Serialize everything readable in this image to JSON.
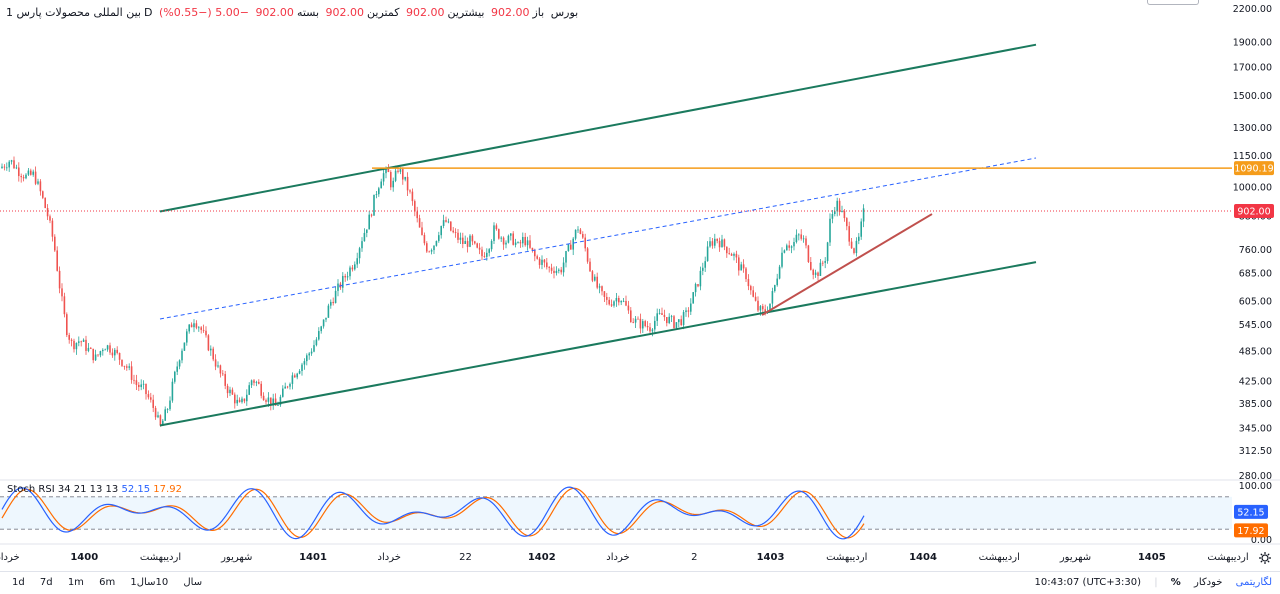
{
  "header": {
    "symbol_name": "بین المللی محصولات پارس",
    "interval": "1D",
    "exchange": "بورس",
    "open_label": "باز",
    "open_value": "902.00",
    "high_label": "بیشترین",
    "high_value": "902.00",
    "low_label": "کمترین",
    "low_value": "902.00",
    "close_label": "بسته",
    "close_value": "902.00",
    "change": "−5.00 (−0.55%)"
  },
  "colors": {
    "up": "#26a69a",
    "down": "#ef5350",
    "channel": "#1b7a5e",
    "resistance": "#f59c1a",
    "trend": "#c0504d",
    "midline": "#2962ff",
    "stoch_k": "#2962ff",
    "stoch_d": "#ff6d00",
    "last_price": "#f23645"
  },
  "chart_data": {
    "type": "candlestick",
    "price_axis": {
      "scale": "log",
      "ticks": [
        "2200.00",
        "1900.00",
        "1700.00",
        "1500.00",
        "1300.00",
        "1150.00",
        "1000.00",
        "880.00",
        "760.00",
        "685.00",
        "605.00",
        "545.00",
        "485.00",
        "425.00",
        "385.00",
        "345.00",
        "312.50",
        "280.00"
      ],
      "range": [
        280,
        2250
      ]
    },
    "time_axis": {
      "ticks": [
        "خرداد",
        "1400",
        "اردیبهشت",
        "شهریور",
        "1401",
        "خرداد",
        "22",
        "1402",
        "خرداد",
        "2",
        "1403",
        "اردیبهشت",
        "1404",
        "اردیبهشت",
        "شهریور",
        "1405",
        "اردیبهشت"
      ]
    },
    "price_path": [
      [
        0,
        1090
      ],
      [
        10,
        1130
      ],
      [
        18,
        1080
      ],
      [
        26,
        1050
      ],
      [
        34,
        1060
      ],
      [
        42,
        960
      ],
      [
        48,
        880
      ],
      [
        54,
        780
      ],
      [
        60,
        640
      ],
      [
        66,
        540
      ],
      [
        72,
        500
      ],
      [
        80,
        510
      ],
      [
        88,
        490
      ],
      [
        96,
        470
      ],
      [
        104,
        500
      ],
      [
        112,
        490
      ],
      [
        120,
        470
      ],
      [
        128,
        450
      ],
      [
        136,
        420
      ],
      [
        144,
        410
      ],
      [
        150,
        390
      ],
      [
        156,
        370
      ],
      [
        160,
        345
      ],
      [
        168,
        380
      ],
      [
        174,
        430
      ],
      [
        180,
        480
      ],
      [
        186,
        520
      ],
      [
        194,
        560
      ],
      [
        200,
        540
      ],
      [
        208,
        500
      ],
      [
        214,
        470
      ],
      [
        220,
        440
      ],
      [
        228,
        410
      ],
      [
        234,
        395
      ],
      [
        240,
        380
      ],
      [
        246,
        400
      ],
      [
        252,
        430
      ],
      [
        258,
        420
      ],
      [
        264,
        400
      ],
      [
        270,
        390
      ],
      [
        276,
        380
      ],
      [
        282,
        400
      ],
      [
        290,
        430
      ],
      [
        298,
        450
      ],
      [
        306,
        470
      ],
      [
        314,
        500
      ],
      [
        322,
        540
      ],
      [
        330,
        600
      ],
      [
        338,
        640
      ],
      [
        346,
        680
      ],
      [
        354,
        720
      ],
      [
        362,
        800
      ],
      [
        370,
        880
      ],
      [
        376,
        980
      ],
      [
        382,
        1060
      ],
      [
        388,
        1070
      ],
      [
        392,
        1000
      ],
      [
        398,
        1090
      ],
      [
        404,
        1040
      ],
      [
        410,
        970
      ],
      [
        416,
        880
      ],
      [
        422,
        800
      ],
      [
        428,
        760
      ],
      [
        434,
        780
      ],
      [
        440,
        840
      ],
      [
        446,
        860
      ],
      [
        452,
        820
      ],
      [
        458,
        800
      ],
      [
        464,
        780
      ],
      [
        470,
        790
      ],
      [
        476,
        760
      ],
      [
        482,
        740
      ],
      [
        488,
        770
      ],
      [
        494,
        830
      ],
      [
        500,
        810
      ],
      [
        506,
        790
      ],
      [
        512,
        800
      ],
      [
        518,
        770
      ],
      [
        524,
        800
      ],
      [
        530,
        760
      ],
      [
        536,
        730
      ],
      [
        542,
        720
      ],
      [
        548,
        700
      ],
      [
        554,
        700
      ],
      [
        560,
        690
      ],
      [
        566,
        740
      ],
      [
        572,
        790
      ],
      [
        578,
        840
      ],
      [
        584,
        780
      ],
      [
        590,
        700
      ],
      [
        596,
        650
      ],
      [
        602,
        620
      ],
      [
        608,
        600
      ],
      [
        614,
        610
      ],
      [
        620,
        620
      ],
      [
        626,
        590
      ],
      [
        632,
        560
      ],
      [
        638,
        550
      ],
      [
        644,
        545
      ],
      [
        650,
        540
      ],
      [
        656,
        560
      ],
      [
        662,
        570
      ],
      [
        668,
        560
      ],
      [
        674,
        550
      ],
      [
        680,
        555
      ],
      [
        686,
        570
      ],
      [
        692,
        610
      ],
      [
        698,
        660
      ],
      [
        704,
        720
      ],
      [
        710,
        780
      ],
      [
        716,
        800
      ],
      [
        722,
        780
      ],
      [
        728,
        760
      ],
      [
        734,
        740
      ],
      [
        740,
        700
      ],
      [
        746,
        680
      ],
      [
        752,
        620
      ],
      [
        758,
        585
      ],
      [
        764,
        575
      ],
      [
        770,
        600
      ],
      [
        776,
        660
      ],
      [
        780,
        730
      ],
      [
        786,
        790
      ],
      [
        792,
        770
      ],
      [
        798,
        810
      ],
      [
        804,
        790
      ],
      [
        808,
        740
      ],
      [
        812,
        700
      ],
      [
        816,
        680
      ],
      [
        820,
        700
      ],
      [
        826,
        740
      ],
      [
        830,
        860
      ],
      [
        836,
        940
      ],
      [
        842,
        890
      ],
      [
        848,
        820
      ],
      [
        854,
        760
      ],
      [
        858,
        780
      ],
      [
        862,
        860
      ],
      [
        864,
        902
      ]
    ],
    "drawings": {
      "channel_upper": [
        [
          160,
          900
        ],
        [
          1036,
          1880
        ]
      ],
      "channel_lower": [
        [
          160,
          350
        ],
        [
          1036,
          720
        ]
      ],
      "channel_mid": [
        [
          160,
          560
        ],
        [
          1036,
          1140
        ]
      ],
      "resistance_level": 1090.19,
      "trendline_support": [
        [
          762,
          570
        ],
        [
          932,
          890
        ]
      ]
    },
    "last_price": "902.00",
    "resistance_label": "1090.19",
    "stoch_rsi": {
      "name": "Stoch RSI",
      "params": "34 21 13 13",
      "k_value": "52.15",
      "d_value": "17.92",
      "axis_ticks": [
        "100.00",
        "0.00"
      ],
      "upper_band": 80,
      "lower_band": 20
    }
  },
  "bottom_bar": {
    "ranges": [
      "1d",
      "7d",
      "1m",
      "6m",
      "1سال",
      "10سال"
    ],
    "time": "10:43:07 (UTC+3:30)",
    "percent_toggle": "%",
    "log_toggle": "لگاریتمی",
    "auto_toggle": "خودکار"
  }
}
